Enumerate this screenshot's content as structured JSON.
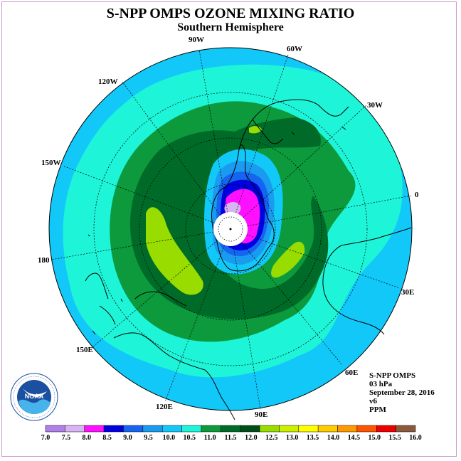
{
  "title": "S-NPP OMPS OZONE MIXING RATIO",
  "subtitle": "Southern Hemisphere",
  "longitude_labels": [
    {
      "text": "90W",
      "key": "lon90w"
    },
    {
      "text": "60W",
      "key": "lon60w"
    },
    {
      "text": "120W",
      "key": "lon120w"
    },
    {
      "text": "30W",
      "key": "lon30w"
    },
    {
      "text": "150W",
      "key": "lon150w"
    },
    {
      "text": "0",
      "key": "lon0"
    },
    {
      "text": "180",
      "key": "lon180"
    },
    {
      "text": "30E",
      "key": "lon30e"
    },
    {
      "text": "150E",
      "key": "lon150e"
    },
    {
      "text": "60E",
      "key": "lon60e"
    },
    {
      "text": "120E",
      "key": "lon120e"
    },
    {
      "text": "90E",
      "key": "lon90e"
    }
  ],
  "info": {
    "instrument": "S-NPP OMPS",
    "level": "03 hPa",
    "date": "September 28, 2016",
    "version": "v6",
    "units": "PPM"
  },
  "logo_text": "NOAA",
  "colors": {
    "c11_11_5": "#0c9a3c",
    "c11_5_12": "#006b28",
    "c12_12_5": "#99dd00",
    "c10_5_11": "#1ef5d8",
    "c10_10_5": "#12c8f8",
    "c9_5_10": "#1a9bf0",
    "c9_9_5": "#1565f0",
    "c8_5_9": "#0000e0",
    "c8_8_5": "#ff10ff",
    "c7_5_8": "#d8b4f5",
    "c7_7_5": "#b07fe8",
    "land_outline": "#000000"
  },
  "color_scale": {
    "ticks": [
      "7.0",
      "7.5",
      "8.0",
      "8.5",
      "9.0",
      "9.5",
      "10.0",
      "10.5",
      "11.0",
      "11.5",
      "12.0",
      "12.5",
      "13.0",
      "13.5",
      "14.0",
      "14.5",
      "15.0",
      "15.5",
      "16.0"
    ],
    "colors": [
      "#b07fe8",
      "#d8b4f5",
      "#ff10ff",
      "#0000e0",
      "#1565f0",
      "#1a9bf0",
      "#12c8f8",
      "#1ef5d8",
      "#0c9a3c",
      "#006b28",
      "#004d1a",
      "#99dd00",
      "#ccf000",
      "#ffff00",
      "#ffcc00",
      "#ff9900",
      "#ff5500",
      "#ee0000",
      "#8b5a3c"
    ]
  }
}
